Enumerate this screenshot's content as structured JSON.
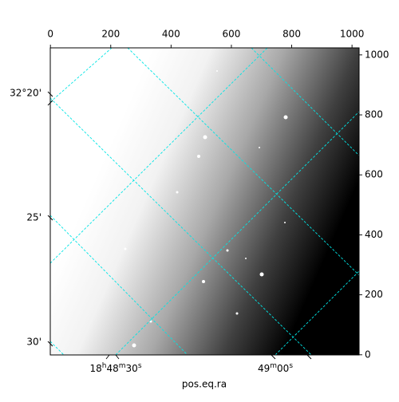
{
  "chart_data": {
    "type": "image",
    "xlabel": "pos.eq.ra",
    "xlim": [
      -0.5,
      1023.5
    ],
    "xticks": [
      0,
      200,
      400,
      600,
      800,
      1000
    ],
    "ylim": [
      -0.5,
      1023.5
    ],
    "yticks": [
      0,
      200,
      400,
      600,
      800,
      1000
    ],
    "ra_ticks": [
      "18h48m30s",
      "49m00s"
    ],
    "dec_ticks": [
      "32°20'",
      "25'",
      "30'"
    ]
  }
}
